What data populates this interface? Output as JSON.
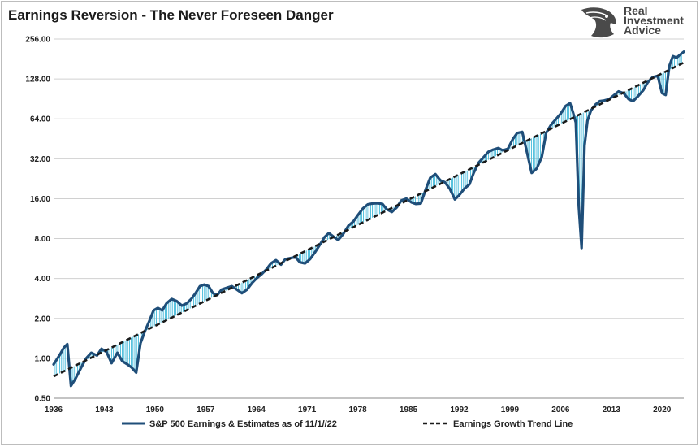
{
  "chart_data": {
    "type": "line",
    "title": "Earnings Reversion - The Never Foreseen Danger",
    "y_scale": "log2",
    "ylim": [
      0.5,
      256
    ],
    "y_ticks": [
      "256.00",
      "128.00",
      "64.00",
      "32.00",
      "16.00",
      "8.00",
      "4.00",
      "2.00",
      "1.00",
      "0.50"
    ],
    "y_tick_values": [
      256,
      128,
      64,
      32,
      16,
      8,
      4,
      2,
      1,
      0.5
    ],
    "xlim": [
      1936,
      2023
    ],
    "x_ticks": [
      "1936",
      "1943",
      "1950",
      "1957",
      "1964",
      "1971",
      "1978",
      "1985",
      "1992",
      "1999",
      "2006",
      "2013",
      "2020"
    ],
    "x_tick_values": [
      1936,
      1943,
      1950,
      1957,
      1964,
      1971,
      1978,
      1985,
      1992,
      1999,
      2006,
      2013,
      2020
    ],
    "grid": true,
    "legend_position": "bottom",
    "series": [
      {
        "name": "S&P 500 Earnings & Estimates as of 11/1//22",
        "color": "#1f4e79",
        "style": "solid",
        "x": [
          1936,
          1936.8,
          1937.4,
          1937.9,
          1938.4,
          1939,
          1939.8,
          1940.5,
          1941.2,
          1942,
          1942.6,
          1943.3,
          1944,
          1944.8,
          1945.5,
          1946.2,
          1946.8,
          1947.4,
          1948,
          1948.6,
          1949.2,
          1949.8,
          1950.4,
          1951,
          1951.6,
          1952.3,
          1953,
          1953.7,
          1954.4,
          1955,
          1955.6,
          1956.2,
          1956.8,
          1957.4,
          1958,
          1958.6,
          1959.2,
          1959.9,
          1960.6,
          1961.3,
          1962,
          1962.7,
          1963.4,
          1964,
          1964.7,
          1965.4,
          1966,
          1966.7,
          1967.4,
          1968,
          1968.7,
          1969.4,
          1970,
          1970.7,
          1971.4,
          1972,
          1972.7,
          1973.4,
          1974,
          1974.6,
          1975.3,
          1976,
          1976.7,
          1977.4,
          1978,
          1978.7,
          1979.4,
          1980,
          1980.7,
          1981.4,
          1982,
          1982.7,
          1983.4,
          1984,
          1984.7,
          1985.4,
          1986,
          1986.7,
          1987.4,
          1988,
          1988.7,
          1989.4,
          1990,
          1990.7,
          1991.4,
          1992,
          1992.7,
          1993.4,
          1994,
          1994.7,
          1995.4,
          1996,
          1996.7,
          1997.4,
          1998,
          1998.7,
          1999.4,
          2000,
          2000.7,
          2001.4,
          2002,
          2002.7,
          2003.4,
          2004,
          2004.7,
          2005.4,
          2006,
          2006.7,
          2007.3,
          2007.7,
          2008.1,
          2008.5,
          2008.9,
          2009.3,
          2009.7,
          2010.2,
          2010.8,
          2011.4,
          2012,
          2012.7,
          2013.4,
          2014,
          2014.7,
          2015.4,
          2016,
          2016.7,
          2017.4,
          2018,
          2018.7,
          2019.4,
          2020,
          2020.5,
          2021,
          2021.5,
          2022,
          2022.5,
          2023
        ],
        "values": [
          0.9,
          1.05,
          1.2,
          1.28,
          0.62,
          0.7,
          0.85,
          1.0,
          1.1,
          1.05,
          1.18,
          1.12,
          0.92,
          1.1,
          0.95,
          0.9,
          0.85,
          0.78,
          1.3,
          1.6,
          1.9,
          2.3,
          2.4,
          2.3,
          2.6,
          2.8,
          2.7,
          2.5,
          2.6,
          2.8,
          3.1,
          3.5,
          3.6,
          3.5,
          3.1,
          3.0,
          3.3,
          3.4,
          3.5,
          3.3,
          3.1,
          3.3,
          3.7,
          4.0,
          4.3,
          4.7,
          5.2,
          5.5,
          5.1,
          5.6,
          5.7,
          5.8,
          5.3,
          5.2,
          5.6,
          6.2,
          7.1,
          8.2,
          8.8,
          8.3,
          7.8,
          8.7,
          10.0,
          10.8,
          12.0,
          13.5,
          14.5,
          14.7,
          14.8,
          14.6,
          13.3,
          12.7,
          13.8,
          15.5,
          16.0,
          15.0,
          14.6,
          14.7,
          19.0,
          23.0,
          24.5,
          22.0,
          21.3,
          19.0,
          15.8,
          17.0,
          19.0,
          20.5,
          25.0,
          30.0,
          33.0,
          36.0,
          37.5,
          38.5,
          37.0,
          38.0,
          45.0,
          50.0,
          51.0,
          35.0,
          25.0,
          27.0,
          33.0,
          50.0,
          58.0,
          64.0,
          70.0,
          80.0,
          84.0,
          72.0,
          60.0,
          14.0,
          6.8,
          40.0,
          62.0,
          74.0,
          82.0,
          87.0,
          88.0,
          90.0,
          97.0,
          103.0,
          100.0,
          90.0,
          87.0,
          95.0,
          105.0,
          120.0,
          132.0,
          135.0,
          100.0,
          97.0,
          160.0,
          190.0,
          185.0,
          195.0,
          205.0
        ]
      },
      {
        "name": "Earnings Growth Trend Line",
        "color": "#1a1a1a",
        "style": "dashed",
        "x": [
          1936,
          2023
        ],
        "values": [
          0.73,
          170
        ]
      }
    ]
  },
  "logo": {
    "text_lines": [
      "Real",
      "Investment",
      "Advice"
    ],
    "icon": "eagle-head-icon"
  }
}
